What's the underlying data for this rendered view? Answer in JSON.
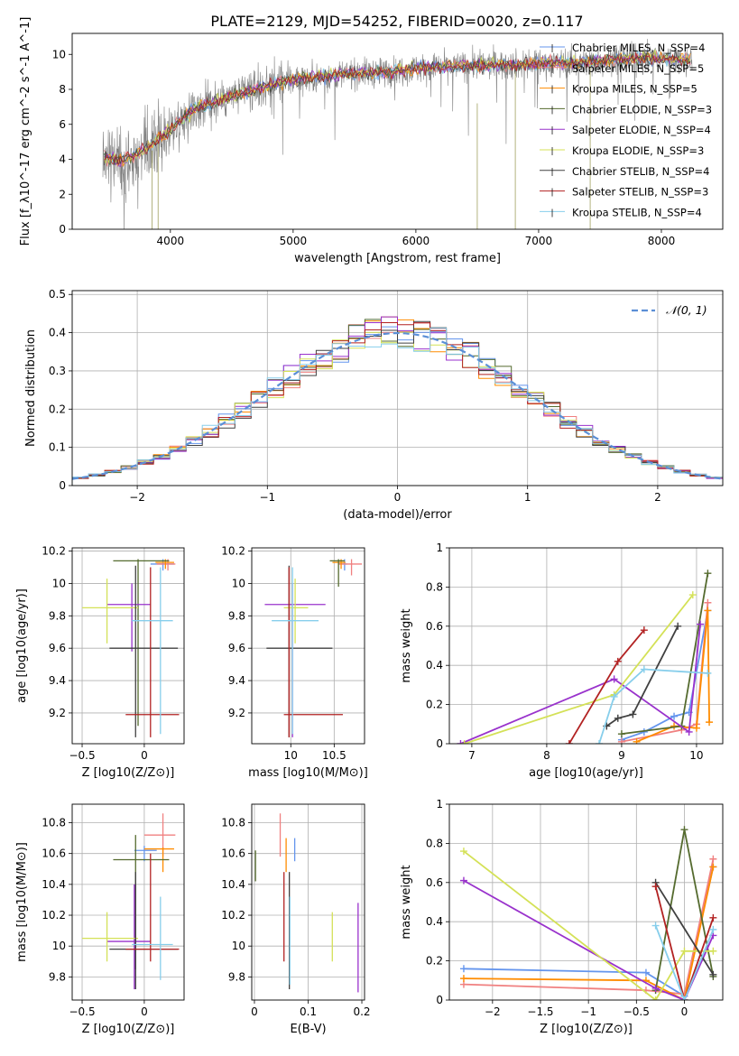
{
  "figure_title": "PLATE=2129, MJD=54252, FIBERID=0020, z=0.117",
  "colors": {
    "c1": "#6495ed",
    "c2": "#f08080",
    "c3": "#ff8c00",
    "c4": "#556b2f",
    "c5": "#9932cc",
    "c6": "#d4e157",
    "c7": "#404040",
    "c8": "#b22222",
    "c9": "#87ceeb",
    "grid": "#b0b0b0",
    "spectrum": "#808080",
    "normal": "#5b8fd6"
  },
  "chart_data": [
    {
      "id": "spectrum",
      "type": "line",
      "xlabel": "wavelength [Angstrom, rest frame]",
      "ylabel": "Flux [f_λ10^-17 erg cm^-2 s^-1 A^-1]",
      "xlim": [
        3200,
        8500
      ],
      "ylim": [
        0,
        11.2
      ],
      "xticks": [
        4000,
        5000,
        6000,
        7000,
        8000
      ],
      "yticks": [
        0,
        2,
        4,
        6,
        8,
        10
      ],
      "legend": [
        {
          "label": "Chabrier MILES, N_SSP=4",
          "color": "#6495ed"
        },
        {
          "label": "Salpeter MILES, N_SSP=5",
          "color": "#f08080"
        },
        {
          "label": "Kroupa MILES, N_SSP=5",
          "color": "#ff8c00"
        },
        {
          "label": "Chabrier ELODIE, N_SSP=3",
          "color": "#556b2f"
        },
        {
          "label": "Salpeter ELODIE, N_SSP=4",
          "color": "#9932cc"
        },
        {
          "label": "Kroupa ELODIE, N_SSP=3",
          "color": "#d4e157"
        },
        {
          "label": "Chabrier STELIB, N_SSP=4",
          "color": "#404040"
        },
        {
          "label": "Salpeter STELIB, N_SSP=3",
          "color": "#b22222"
        },
        {
          "label": "Kroupa STELIB, N_SSP=4",
          "color": "#87ceeb"
        }
      ],
      "continuum": {
        "x": [
          3450,
          3600,
          3800,
          4000,
          4200,
          4500,
          4800,
          5000,
          5200,
          5500,
          5800,
          6000,
          6300,
          6500,
          6800,
          7000,
          7300,
          7600,
          7900,
          8200
        ],
        "y": [
          4.2,
          3.9,
          4.6,
          5.7,
          6.9,
          7.6,
          8.2,
          8.6,
          8.7,
          8.9,
          9.0,
          9.2,
          9.3,
          9.4,
          9.4,
          9.5,
          9.5,
          9.7,
          9.8,
          9.7
        ]
      }
    },
    {
      "id": "residuals",
      "type": "histogram",
      "xlabel": "(data-model)/error",
      "ylabel": "Normed distribution",
      "xlim": [
        -2.5,
        2.5
      ],
      "ylim": [
        0,
        0.51
      ],
      "xticks": [
        -2,
        -1,
        0,
        1,
        2
      ],
      "yticks": [
        0.0,
        0.1,
        0.2,
        0.3,
        0.4,
        0.5
      ],
      "legend": [
        {
          "label": "𝒩(0, 1)",
          "color": "#5b8fd6",
          "style": "dashed"
        }
      ],
      "bins": 40
    },
    {
      "id": "age_vs_z",
      "type": "errorbar",
      "xlabel": "Z [log10(Z/Z⊙)]",
      "ylabel": "age  [log10(age/yr)]",
      "xlim": [
        -0.58,
        0.32
      ],
      "ylim": [
        9.01,
        10.22
      ],
      "xticks": [
        -0.5,
        0.0,
        0.5
      ],
      "yticks": [
        9.2,
        9.4,
        9.6,
        9.8,
        10.0,
        10.2
      ],
      "points": [
        {
          "c": "c1",
          "x": 0.15,
          "xe": [
            0.05,
            0.24
          ],
          "y": 10.12,
          "ye": [
            10.08,
            10.15
          ]
        },
        {
          "c": "c2",
          "x": 0.19,
          "xe": [
            0.1,
            0.25
          ],
          "y": 10.12,
          "ye": [
            10.08,
            10.15
          ]
        },
        {
          "c": "c3",
          "x": 0.17,
          "xe": [
            0.09,
            0.24
          ],
          "y": 10.13,
          "ye": [
            10.09,
            10.15
          ]
        },
        {
          "c": "c4",
          "x": -0.05,
          "xe": [
            -0.25,
            0.2
          ],
          "y": 10.14,
          "ye": [
            9.12,
            10.15
          ]
        },
        {
          "c": "c5",
          "x": -0.1,
          "xe": [
            -0.3,
            0.05
          ],
          "y": 9.87,
          "ye": [
            9.58,
            10.0
          ]
        },
        {
          "c": "c6",
          "x": -0.3,
          "xe": [
            -0.5,
            -0.05
          ],
          "y": 9.85,
          "ye": [
            9.63,
            10.03
          ]
        },
        {
          "c": "c7",
          "x": -0.07,
          "xe": [
            -0.28,
            0.27
          ],
          "y": 9.6,
          "ye": [
            9.05,
            10.11
          ]
        },
        {
          "c": "c8",
          "x": 0.05,
          "xe": [
            -0.15,
            0.28
          ],
          "y": 9.19,
          "ye": [
            9.05,
            10.1
          ]
        },
        {
          "c": "c9",
          "x": 0.13,
          "xe": [
            -0.1,
            0.23
          ],
          "y": 9.77,
          "ye": [
            9.07,
            10.1
          ]
        }
      ]
    },
    {
      "id": "age_vs_mass",
      "type": "errorbar",
      "xlabel": "mass [log10(M/M⊙)]",
      "ylabel": "",
      "xlim": [
        9.55,
        10.85
      ],
      "ylim": [
        9.01,
        10.22
      ],
      "xticks": [
        10.0,
        10.5
      ],
      "yticks": [
        9.2,
        9.4,
        9.6,
        9.8,
        10.0,
        10.2
      ],
      "points": [
        {
          "c": "c1",
          "x": 10.62,
          "xe": [
            10.55,
            10.65
          ],
          "y": 10.12,
          "ye": [
            10.08,
            10.15
          ]
        },
        {
          "c": "c2",
          "x": 10.7,
          "xe": [
            10.55,
            10.82
          ],
          "y": 10.12,
          "ye": [
            10.05,
            10.15
          ]
        },
        {
          "c": "c3",
          "x": 10.58,
          "xe": [
            10.48,
            10.63
          ],
          "y": 10.13,
          "ye": [
            10.09,
            10.15
          ]
        },
        {
          "c": "c4",
          "x": 10.55,
          "xe": [
            10.45,
            10.62
          ],
          "y": 10.14,
          "ye": [
            9.98,
            10.15
          ]
        },
        {
          "c": "c5",
          "x": 10.02,
          "xe": [
            9.7,
            10.4
          ],
          "y": 9.87,
          "ye": [
            9.05,
            10.0
          ]
        },
        {
          "c": "c6",
          "x": 10.05,
          "xe": [
            9.92,
            10.2
          ],
          "y": 9.85,
          "ye": [
            9.63,
            10.03
          ]
        },
        {
          "c": "c7",
          "x": 9.98,
          "xe": [
            9.72,
            10.48
          ],
          "y": 9.6,
          "ye": [
            9.05,
            10.11
          ]
        },
        {
          "c": "c8",
          "x": 9.98,
          "xe": [
            9.92,
            10.6
          ],
          "y": 9.19,
          "ye": [
            9.05,
            10.1
          ]
        },
        {
          "c": "c9",
          "x": 10.02,
          "xe": [
            9.78,
            10.32
          ],
          "y": 9.77,
          "ye": [
            9.07,
            10.1
          ]
        }
      ]
    },
    {
      "id": "weight_vs_age",
      "type": "line",
      "xlabel": "age  [log10(age/yr)]",
      "ylabel": "mass weight",
      "xlim": [
        6.7,
        10.35
      ],
      "ylim": [
        0,
        1.0
      ],
      "xticks": [
        7,
        8,
        9,
        10
      ],
      "yticks": [
        0.0,
        0.2,
        0.4,
        0.6,
        0.8,
        1.0
      ],
      "series": [
        {
          "c": "c1",
          "x": [
            9.0,
            9.3,
            9.7,
            9.9,
            10.15
          ],
          "y": [
            0.02,
            0.06,
            0.14,
            0.16,
            0.68
          ]
        },
        {
          "c": "c2",
          "x": [
            9.0,
            9.8,
            10.0,
            10.15
          ],
          "y": [
            0.01,
            0.07,
            0.1,
            0.72
          ]
        },
        {
          "c": "c3",
          "x": [
            9.2,
            9.7,
            10.0,
            10.15,
            10.17
          ],
          "y": [
            0.01,
            0.09,
            0.08,
            0.68,
            0.11
          ]
        },
        {
          "c": "c4",
          "x": [
            9.0,
            9.8,
            10.15
          ],
          "y": [
            0.05,
            0.09,
            0.87
          ]
        },
        {
          "c": "c5",
          "x": [
            6.85,
            8.9,
            9.9,
            10.05
          ],
          "y": [
            0.0,
            0.33,
            0.06,
            0.61
          ]
        },
        {
          "c": "c6",
          "x": [
            6.9,
            8.9,
            9.95
          ],
          "y": [
            0.0,
            0.25,
            0.76
          ]
        },
        {
          "c": "c7",
          "x": [
            8.8,
            8.95,
            9.15,
            9.75
          ],
          "y": [
            0.09,
            0.13,
            0.15,
            0.6
          ]
        },
        {
          "c": "c8",
          "x": [
            8.3,
            8.95,
            9.3
          ],
          "y": [
            0.0,
            0.42,
            0.58
          ]
        },
        {
          "c": "c9",
          "x": [
            8.7,
            8.9,
            9.3,
            10.15
          ],
          "y": [
            0.0,
            0.24,
            0.38,
            0.36
          ]
        }
      ]
    },
    {
      "id": "mass_vs_z",
      "type": "errorbar",
      "xlabel": "Z [log10(Z/Z⊙)]",
      "ylabel": "mass [log10(M/M⊙)]",
      "xlim": [
        -0.58,
        0.32
      ],
      "ylim": [
        9.65,
        10.92
      ],
      "xticks": [
        -0.5,
        0.0,
        0.5
      ],
      "yticks": [
        9.8,
        10.0,
        10.2,
        10.4,
        10.6,
        10.8
      ],
      "points": [
        {
          "c": "c1",
          "x": 0.0,
          "xe": [
            -0.08,
            0.1
          ],
          "y": 10.62,
          "ye": [
            10.55,
            10.65
          ]
        },
        {
          "c": "c2",
          "x": 0.15,
          "xe": [
            0.0,
            0.25
          ],
          "y": 10.72,
          "ye": [
            10.58,
            10.86
          ]
        },
        {
          "c": "c3",
          "x": 0.15,
          "xe": [
            0.0,
            0.24
          ],
          "y": 10.63,
          "ye": [
            10.48,
            10.64
          ]
        },
        {
          "c": "c4",
          "x": -0.07,
          "xe": [
            -0.25,
            0.2
          ],
          "y": 10.56,
          "ye": [
            9.85,
            10.72
          ]
        },
        {
          "c": "c5",
          "x": -0.08,
          "xe": [
            -0.3,
            0.05
          ],
          "y": 10.03,
          "ye": [
            9.72,
            10.4
          ]
        },
        {
          "c": "c6",
          "x": -0.3,
          "xe": [
            -0.5,
            -0.05
          ],
          "y": 10.05,
          "ye": [
            9.9,
            10.22
          ]
        },
        {
          "c": "c7",
          "x": -0.07,
          "xe": [
            -0.28,
            0.27
          ],
          "y": 9.98,
          "ye": [
            9.72,
            10.48
          ]
        },
        {
          "c": "c8",
          "x": 0.05,
          "xe": [
            -0.15,
            0.28
          ],
          "y": 9.98,
          "ye": [
            9.9,
            10.6
          ]
        },
        {
          "c": "c9",
          "x": 0.13,
          "xe": [
            -0.1,
            0.23
          ],
          "y": 10.01,
          "ye": [
            9.78,
            10.32
          ]
        }
      ]
    },
    {
      "id": "mass_vs_ebv",
      "type": "errorbar",
      "xlabel": "E(B-V)",
      "ylabel": "",
      "xlim": [
        -0.005,
        0.205
      ],
      "ylim": [
        9.65,
        10.92
      ],
      "xticks": [
        0.0,
        0.1,
        0.2
      ],
      "yticks": [
        9.8,
        10.0,
        10.2,
        10.4,
        10.6,
        10.8
      ],
      "points": [
        {
          "c": "c1",
          "x": 0.075,
          "y": 10.62,
          "ye": [
            10.55,
            10.7
          ]
        },
        {
          "c": "c2",
          "x": 0.048,
          "y": 10.72,
          "ye": [
            10.58,
            10.86
          ]
        },
        {
          "c": "c3",
          "x": 0.059,
          "y": 10.63,
          "ye": [
            10.48,
            10.7
          ]
        },
        {
          "c": "c4",
          "x": 0.002,
          "y": 10.56,
          "ye": [
            10.42,
            10.62
          ]
        },
        {
          "c": "c5",
          "x": 0.193,
          "y": 10.03,
          "ye": [
            9.7,
            10.28
          ]
        },
        {
          "c": "c6",
          "x": 0.145,
          "y": 10.05,
          "ye": [
            9.9,
            10.22
          ]
        },
        {
          "c": "c7",
          "x": 0.065,
          "y": 9.98,
          "ye": [
            9.72,
            10.48
          ]
        },
        {
          "c": "c8",
          "x": 0.055,
          "y": 9.98,
          "ye": [
            9.9,
            10.48
          ]
        },
        {
          "c": "c9",
          "x": 0.066,
          "y": 10.01,
          "ye": [
            9.75,
            10.32
          ]
        }
      ]
    },
    {
      "id": "weight_vs_z",
      "type": "line",
      "xlabel": "Z [log10(Z/Z⊙)]",
      "ylabel": "mass weight",
      "xlim": [
        -2.45,
        0.4
      ],
      "ylim": [
        0,
        1.0
      ],
      "xticks": [
        -2.0,
        -1.5,
        -1.0,
        -0.5,
        0.0
      ],
      "yticks": [
        0.0,
        0.2,
        0.4,
        0.6,
        0.8,
        1.0
      ],
      "series": [
        {
          "c": "c1",
          "x": [
            -2.3,
            -0.4,
            0.0,
            0.3
          ],
          "y": [
            0.16,
            0.14,
            0.02,
            0.68
          ]
        },
        {
          "c": "c2",
          "x": [
            -2.3,
            -0.4,
            0.0,
            0.3
          ],
          "y": [
            0.08,
            0.05,
            0.03,
            0.72
          ]
        },
        {
          "c": "c3",
          "x": [
            -2.3,
            -0.4,
            0.0,
            0.3
          ],
          "y": [
            0.11,
            0.1,
            0.0,
            0.68
          ]
        },
        {
          "c": "c4",
          "x": [
            -0.3,
            0.0,
            0.3
          ],
          "y": [
            0.05,
            0.87,
            0.12
          ]
        },
        {
          "c": "c5",
          "x": [
            -2.3,
            -0.3,
            0.0,
            0.3
          ],
          "y": [
            0.61,
            0.06,
            0.0,
            0.33
          ]
        },
        {
          "c": "c6",
          "x": [
            -2.3,
            -0.3,
            0.0,
            0.3
          ],
          "y": [
            0.76,
            0.0,
            0.25,
            0.25
          ]
        },
        {
          "c": "c7",
          "x": [
            -0.3,
            0.3
          ],
          "y": [
            0.6,
            0.13
          ]
        },
        {
          "c": "c8",
          "x": [
            -0.3,
            0.0,
            0.3
          ],
          "y": [
            0.58,
            0.0,
            0.42
          ]
        },
        {
          "c": "c9",
          "x": [
            -0.3,
            0.0,
            0.3
          ],
          "y": [
            0.38,
            0.0,
            0.36
          ]
        }
      ]
    }
  ]
}
